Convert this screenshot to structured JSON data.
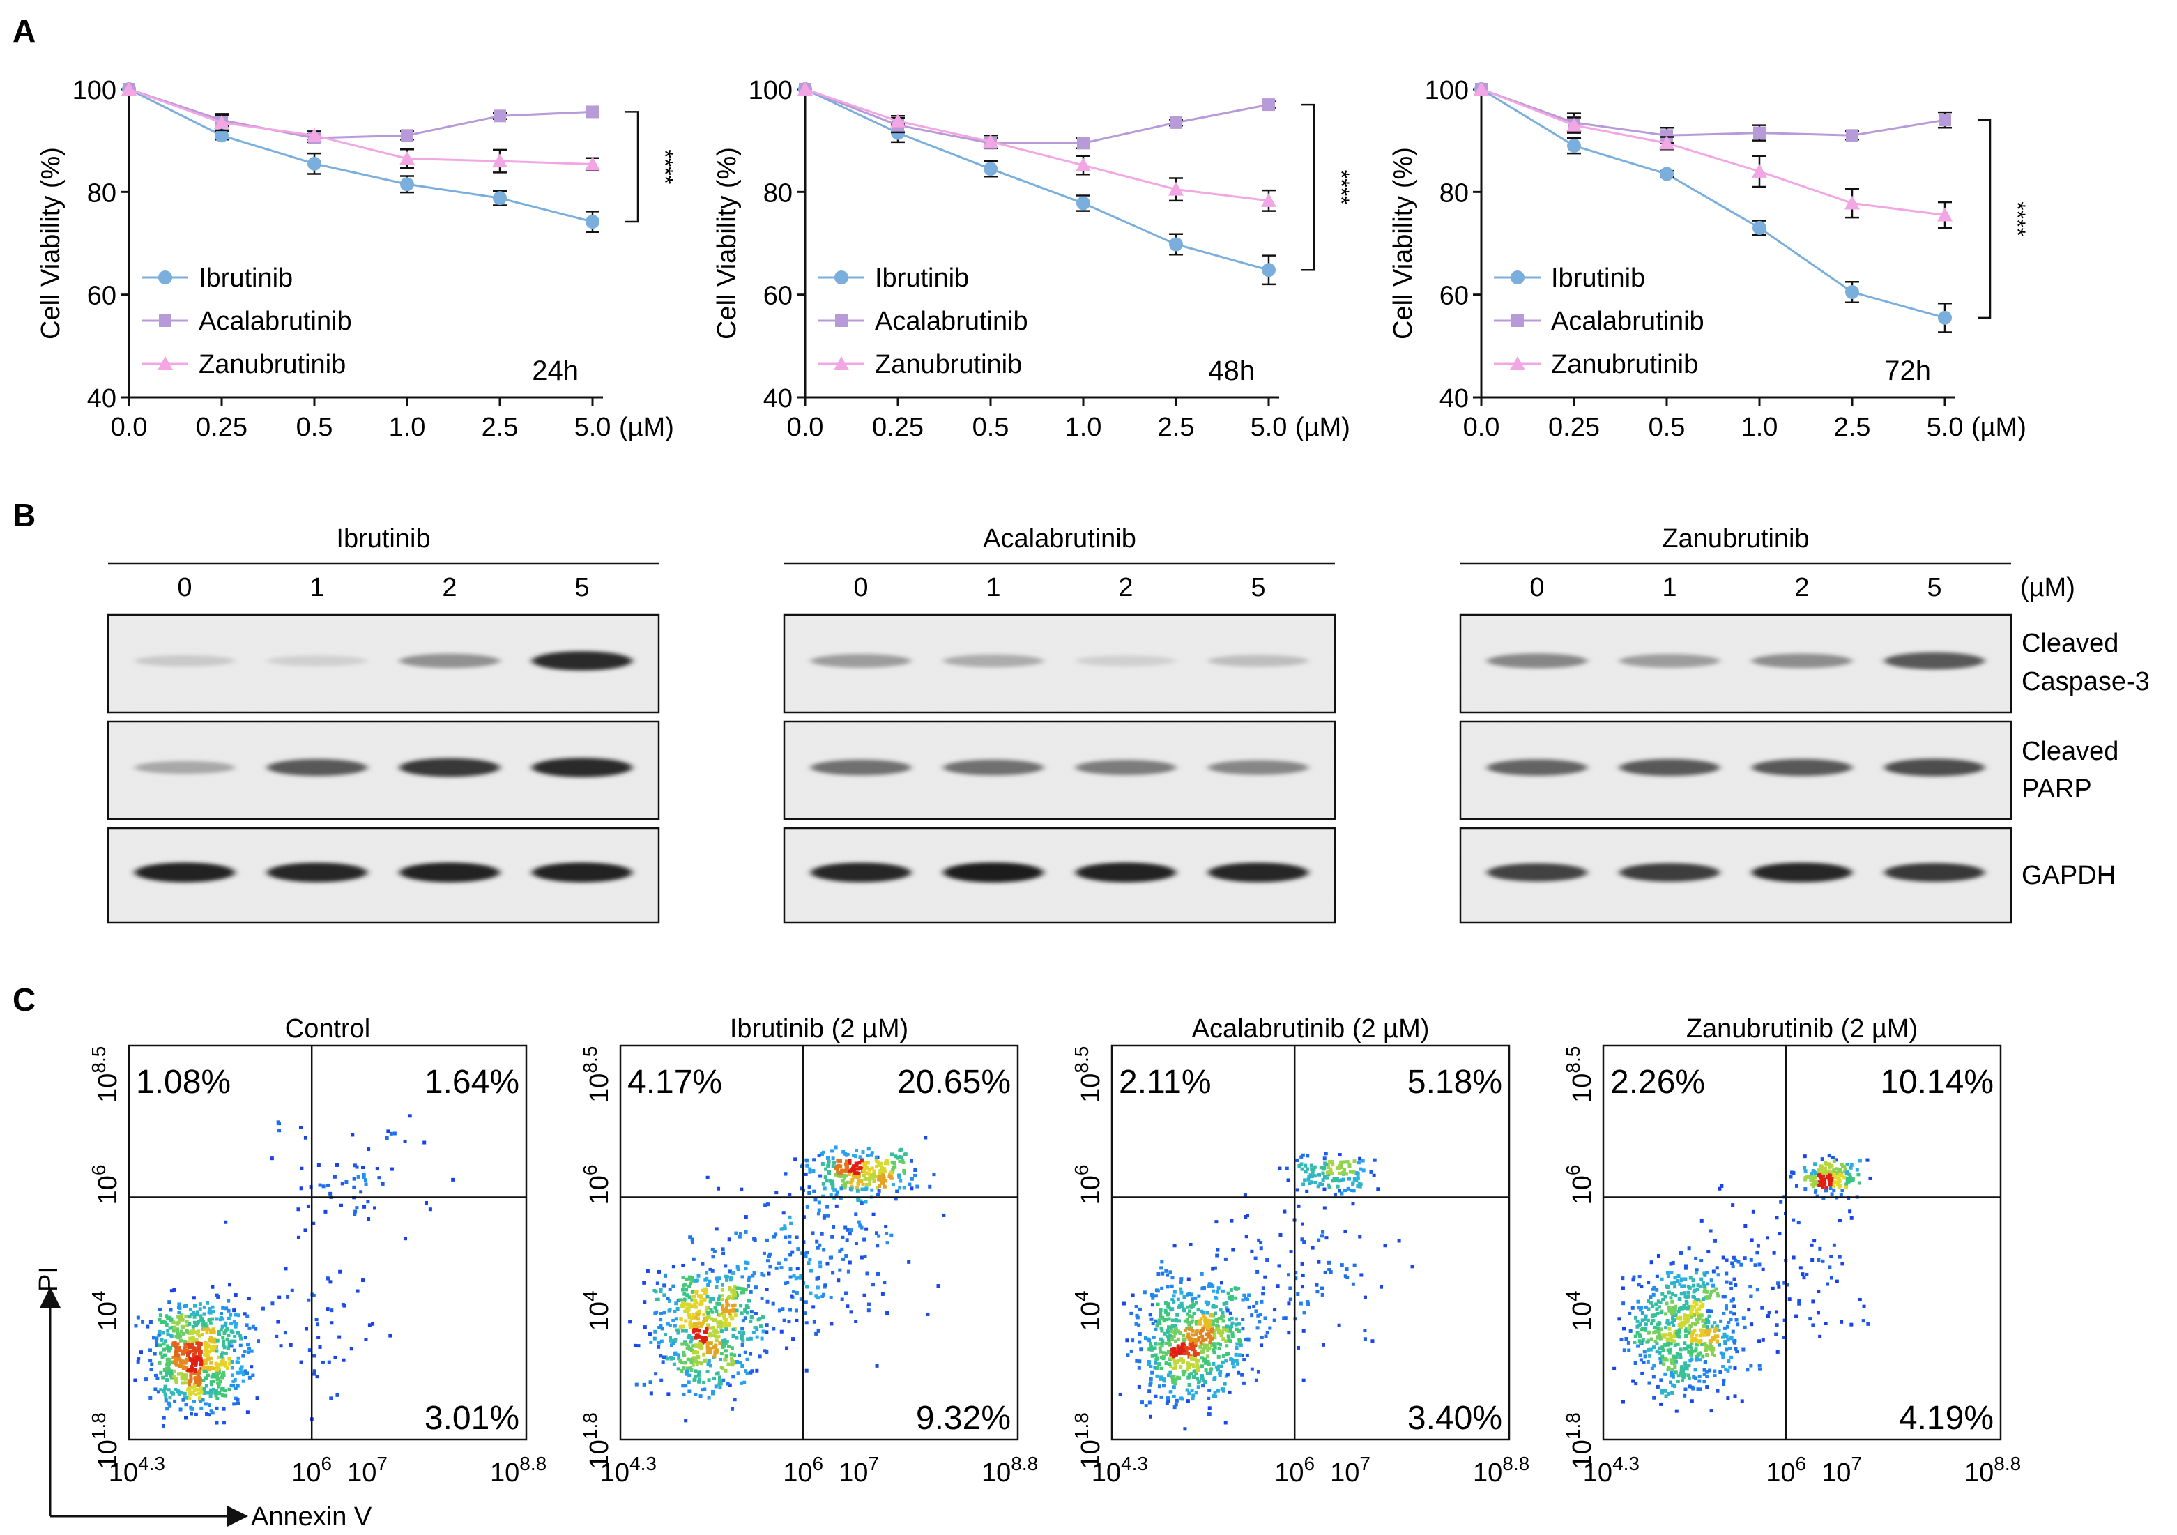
{
  "panel_labels": [
    "A",
    "B",
    "C"
  ],
  "colors": {
    "ibrutinib": "#7aaedc",
    "acalabrutinib": "#b79ad8",
    "zanubrutinib": "#f2a6e3",
    "axis": "#111111"
  },
  "chart_data": [
    {
      "type": "line",
      "panel": "A",
      "time_label": "24h",
      "ylabel": "Cell Viability (%)",
      "x_unit": "(µM)",
      "categories": [
        "0.0",
        "0.25",
        "0.5",
        "1.0",
        "2.5",
        "5.0"
      ],
      "ylim": [
        40,
        100
      ],
      "yticks": [
        40,
        60,
        80,
        100
      ],
      "significance": "****",
      "series": [
        {
          "name": "Ibrutinib",
          "marker": "circle",
          "values": [
            100,
            91,
            85.5,
            81.5,
            78.8,
            74.2
          ],
          "errors": [
            0,
            0.8,
            2.0,
            1.6,
            1.4,
            2.0
          ]
        },
        {
          "name": "Acalabrutinib",
          "marker": "square",
          "values": [
            100,
            94,
            90.5,
            91,
            94.8,
            95.6
          ],
          "errors": [
            0,
            1.2,
            0.8,
            0.8,
            0.6,
            0.6
          ]
        },
        {
          "name": "Zanubrutinib",
          "marker": "triangle",
          "values": [
            100,
            93.5,
            91,
            86.5,
            86,
            85.4
          ],
          "errors": [
            0,
            1.5,
            0.8,
            1.8,
            2.2,
            1.2
          ]
        }
      ]
    },
    {
      "type": "line",
      "panel": "A",
      "time_label": "48h",
      "ylabel": "Cell Viability (%)",
      "x_unit": "(µM)",
      "categories": [
        "0.0",
        "0.25",
        "0.5",
        "1.0",
        "2.5",
        "5.0"
      ],
      "ylim": [
        40,
        100
      ],
      "yticks": [
        40,
        60,
        80,
        100
      ],
      "significance": "****",
      "series": [
        {
          "name": "Ibrutinib",
          "marker": "circle",
          "values": [
            100,
            91.5,
            84.5,
            77.8,
            69.8,
            64.8
          ],
          "errors": [
            0,
            1.8,
            1.5,
            1.5,
            2.0,
            2.8
          ]
        },
        {
          "name": "Acalabrutinib",
          "marker": "square",
          "values": [
            100,
            93,
            89.5,
            89.5,
            93.5,
            97
          ],
          "errors": [
            0,
            1.4,
            1.0,
            1.0,
            0.6,
            0.6
          ]
        },
        {
          "name": "Zanubrutinib",
          "marker": "triangle",
          "values": [
            100,
            93.8,
            89.8,
            85.2,
            80.5,
            78.3
          ],
          "errors": [
            0,
            1.0,
            1.2,
            1.8,
            2.2,
            2.0
          ]
        }
      ]
    },
    {
      "type": "line",
      "panel": "A",
      "time_label": "72h",
      "ylabel": "Cell Viability (%)",
      "x_unit": "(µM)",
      "categories": [
        "0.0",
        "0.25",
        "0.5",
        "1.0",
        "2.5",
        "5.0"
      ],
      "ylim": [
        40,
        100
      ],
      "yticks": [
        40,
        60,
        80,
        100
      ],
      "significance": "****",
      "series": [
        {
          "name": "Ibrutinib",
          "marker": "circle",
          "values": [
            100,
            89,
            83.5,
            73,
            60.5,
            55.5
          ],
          "errors": [
            0,
            1.5,
            0.6,
            1.4,
            2.0,
            2.8
          ]
        },
        {
          "name": "Acalabrutinib",
          "marker": "square",
          "values": [
            100,
            93.5,
            91,
            91.5,
            91,
            94
          ],
          "errors": [
            0,
            1.8,
            1.5,
            1.5,
            0.8,
            1.5
          ]
        },
        {
          "name": "Zanubrutinib",
          "marker": "triangle",
          "values": [
            100,
            93,
            89.5,
            84,
            77.8,
            75.5
          ],
          "errors": [
            0,
            1.5,
            1.2,
            3.0,
            2.8,
            2.5
          ]
        }
      ]
    }
  ],
  "western": {
    "unit": "(µM)",
    "doses": [
      "0",
      "1",
      "2",
      "5"
    ],
    "groups": [
      {
        "name": "Ibrutinib",
        "bands": {
          "caspase": [
            0.15,
            0.12,
            0.4,
            0.85
          ],
          "parp": [
            0.3,
            0.65,
            0.8,
            0.85
          ],
          "gapdh": [
            0.9,
            0.88,
            0.9,
            0.9
          ]
        }
      },
      {
        "name": "Acalabrutinib",
        "bands": {
          "caspase": [
            0.35,
            0.28,
            0.12,
            0.2
          ],
          "parp": [
            0.55,
            0.55,
            0.5,
            0.45
          ],
          "gapdh": [
            0.88,
            0.92,
            0.9,
            0.88
          ]
        }
      },
      {
        "name": "Zanubrutinib",
        "bands": {
          "caspase": [
            0.45,
            0.35,
            0.42,
            0.65
          ],
          "parp": [
            0.6,
            0.65,
            0.65,
            0.7
          ],
          "gapdh": [
            0.75,
            0.78,
            0.88,
            0.8
          ]
        }
      }
    ],
    "row_labels": [
      [
        "Cleaved",
        "Caspase-3"
      ],
      [
        "Cleaved",
        "PARP"
      ],
      [
        "GAPDH"
      ]
    ]
  },
  "flow": {
    "x_axis_label": "Annexin V",
    "y_axis_label": "PI",
    "x_ticks": [
      "10 4.3",
      "10 6",
      "10 7",
      "10 8.8"
    ],
    "y_ticks": [
      "10 8.5",
      "10 6",
      "10 4",
      "10 1.8"
    ],
    "panels": [
      {
        "title": "Control",
        "q_ul": "1.08%",
        "q_ur": "1.64%",
        "q_lr": "3.01%"
      },
      {
        "title": "Ibrutinib (2 µM)",
        "q_ul": "4.17%",
        "q_ur": "20.65%",
        "q_lr": "9.32%"
      },
      {
        "title": "Acalabrutinib (2 µM)",
        "q_ul": "2.11%",
        "q_ur": "5.18%",
        "q_lr": "3.40%"
      },
      {
        "title": "Zanubrutinib (2 µM)",
        "q_ul": "2.26%",
        "q_ur": "10.14%",
        "q_lr": "4.19%"
      }
    ]
  }
}
